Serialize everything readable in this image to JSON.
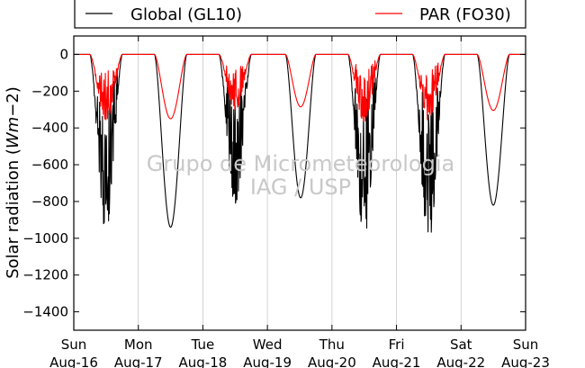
{
  "chart_data": {
    "type": "line",
    "ylabel": "Solar radiation ($Wm{-2}$)",
    "ylim": [
      -1500,
      100
    ],
    "yticks": [
      0,
      -200,
      -400,
      -600,
      -800,
      -1000,
      -1200,
      -1400
    ],
    "xlim": [
      0,
      7
    ],
    "x_ticks": [
      {
        "day": "Sun",
        "date": "Aug-16"
      },
      {
        "day": "Mon",
        "date": "Aug-17"
      },
      {
        "day": "Tue",
        "date": "Aug-18"
      },
      {
        "day": "Wed",
        "date": "Aug-19"
      },
      {
        "day": "Thu",
        "date": "Aug-20"
      },
      {
        "day": "Fri",
        "date": "Aug-21"
      },
      {
        "day": "Sat",
        "date": "Aug-22"
      },
      {
        "day": "Sun",
        "date": "Aug-23"
      }
    ],
    "grid": "vertical",
    "legend_position": "top",
    "watermark": [
      "Grupo de Micrometeorologia",
      "IAG / USP"
    ],
    "series": [
      {
        "name": "Global (GL10)",
        "color": "#000000",
        "days": [
          {
            "day": "Aug-16",
            "sunrise": 0.25,
            "sunset": 0.75,
            "peak": -950,
            "jagged": true
          },
          {
            "day": "Aug-17",
            "sunrise": 0.25,
            "sunset": 0.75,
            "peak": -940,
            "jagged": false
          },
          {
            "day": "Aug-18",
            "sunrise": 0.25,
            "sunset": 0.75,
            "peak": -810,
            "jagged": true
          },
          {
            "day": "Aug-19",
            "sunrise": 0.28,
            "sunset": 0.75,
            "peak": -780,
            "jagged": false
          },
          {
            "day": "Aug-20",
            "sunrise": 0.25,
            "sunset": 0.75,
            "peak": -985,
            "jagged": true
          },
          {
            "day": "Aug-21",
            "sunrise": 0.25,
            "sunset": 0.75,
            "peak": -1015,
            "jagged": true
          },
          {
            "day": "Aug-22",
            "sunrise": 0.25,
            "sunset": 0.75,
            "peak": -820,
            "jagged": false
          }
        ]
      },
      {
        "name": "PAR (FO30)",
        "color": "#ff0000",
        "days": [
          {
            "day": "Aug-16",
            "sunrise": 0.25,
            "sunset": 0.75,
            "peak": -355,
            "jagged": true
          },
          {
            "day": "Aug-17",
            "sunrise": 0.25,
            "sunset": 0.75,
            "peak": -350,
            "jagged": false
          },
          {
            "day": "Aug-18",
            "sunrise": 0.25,
            "sunset": 0.75,
            "peak": -300,
            "jagged": true
          },
          {
            "day": "Aug-19",
            "sunrise": 0.28,
            "sunset": 0.75,
            "peak": -285,
            "jagged": false
          },
          {
            "day": "Aug-20",
            "sunrise": 0.25,
            "sunset": 0.75,
            "peak": -365,
            "jagged": true
          },
          {
            "day": "Aug-21",
            "sunrise": 0.25,
            "sunset": 0.75,
            "peak": -355,
            "jagged": true
          },
          {
            "day": "Aug-22",
            "sunrise": 0.25,
            "sunset": 0.75,
            "peak": -305,
            "jagged": false
          }
        ]
      }
    ]
  }
}
